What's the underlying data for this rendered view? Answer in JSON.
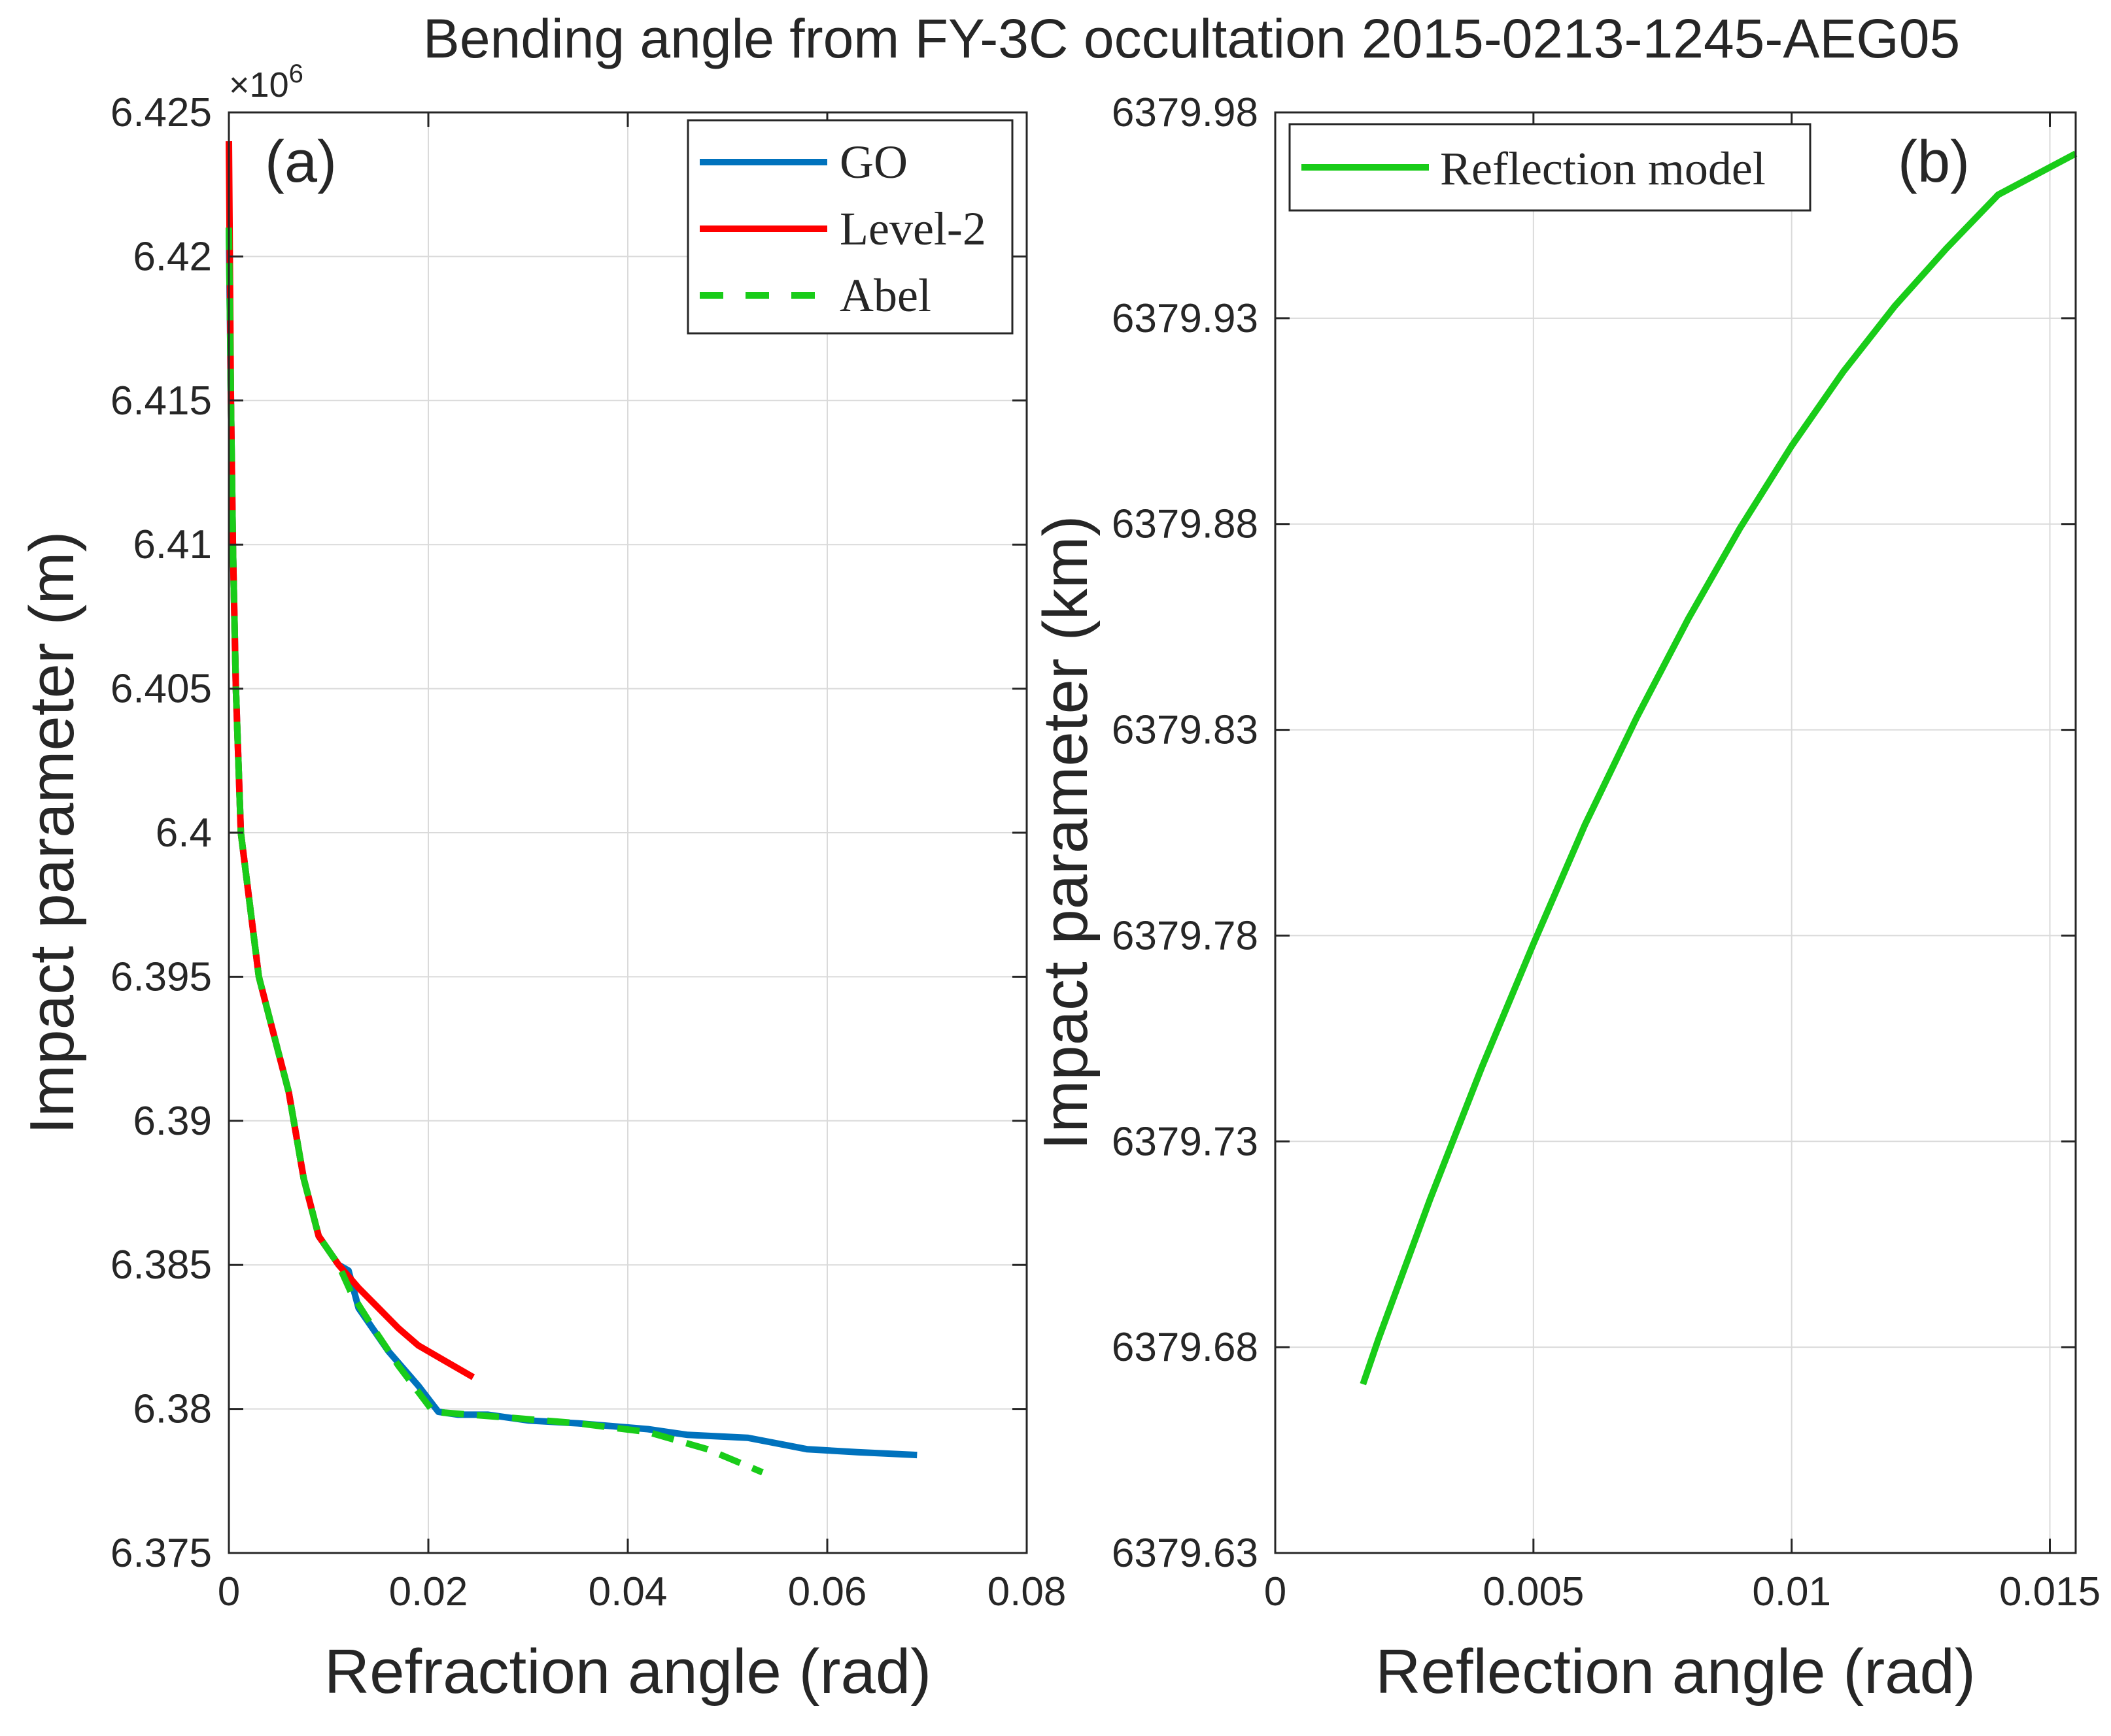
{
  "figure_title": "Bending angle from FY-3C occultation 2015-0213-1245-AEG05",
  "colors": {
    "go": "#0072BD",
    "level2": "#FF0000",
    "abel": "#19CC19",
    "reflection": "#19CC19",
    "axis": "#262626",
    "grid": "#DADADA"
  },
  "chart_data": [
    {
      "panel_label": "(a)",
      "type": "line",
      "xlabel": "Refraction angle (rad)",
      "ylabel": "Impact parameter (m)",
      "y_exponent": "×10",
      "y_exponent_power": "6",
      "xlim": [
        0,
        0.08
      ],
      "ylim": [
        6.375,
        6.425
      ],
      "xticks": [
        0,
        0.02,
        0.04,
        0.06,
        0.08
      ],
      "xtick_labels": [
        "0",
        "0.02",
        "0.04",
        "0.06",
        "0.08"
      ],
      "yticks": [
        6.375,
        6.38,
        6.385,
        6.39,
        6.395,
        6.4,
        6.405,
        6.41,
        6.415,
        6.42,
        6.425
      ],
      "ytick_labels": [
        "6.375",
        "6.38",
        "6.385",
        "6.39",
        "6.395",
        "6.4",
        "6.405",
        "6.41",
        "6.415",
        "6.42",
        "6.425"
      ],
      "grid": true,
      "legend_location": "top-right",
      "series": [
        {
          "name": "GO",
          "style": "solid",
          "color_key": "go",
          "points": [
            [
              0.0,
              6.421
            ],
            [
              0.0002,
              6.415
            ],
            [
              0.0004,
              6.41
            ],
            [
              0.0007,
              6.405
            ],
            [
              0.0012,
              6.4
            ],
            [
              0.003,
              6.395
            ],
            [
              0.0045,
              6.393
            ],
            [
              0.006,
              6.391
            ],
            [
              0.0075,
              6.388
            ],
            [
              0.009,
              6.386
            ],
            [
              0.011,
              6.385
            ],
            [
              0.012,
              6.3848
            ],
            [
              0.013,
              6.3835
            ],
            [
              0.016,
              6.382
            ],
            [
              0.019,
              6.3808
            ],
            [
              0.021,
              6.3799
            ],
            [
              0.023,
              6.3798
            ],
            [
              0.026,
              6.3798
            ],
            [
              0.03,
              6.3796
            ],
            [
              0.035,
              6.3795
            ],
            [
              0.042,
              6.3793
            ],
            [
              0.046,
              6.3791
            ],
            [
              0.052,
              6.379
            ],
            [
              0.058,
              6.3786
            ],
            [
              0.063,
              6.3785
            ],
            [
              0.069,
              6.3784
            ]
          ]
        },
        {
          "name": "Level-2",
          "style": "solid",
          "color_key": "level2",
          "points": [
            [
              0.0,
              6.424
            ],
            [
              0.0002,
              6.415
            ],
            [
              0.0004,
              6.41
            ],
            [
              0.0007,
              6.405
            ],
            [
              0.0012,
              6.4
            ],
            [
              0.003,
              6.395
            ],
            [
              0.0045,
              6.393
            ],
            [
              0.006,
              6.391
            ],
            [
              0.0075,
              6.388
            ],
            [
              0.009,
              6.386
            ],
            [
              0.011,
              6.385
            ],
            [
              0.013,
              6.3842
            ],
            [
              0.015,
              6.3835
            ],
            [
              0.017,
              6.3828
            ],
            [
              0.019,
              6.3822
            ],
            [
              0.0215,
              6.3817
            ],
            [
              0.0245,
              6.3811
            ]
          ]
        },
        {
          "name": "Abel",
          "style": "dashed",
          "color_key": "abel",
          "points": [
            [
              0.0,
              6.421
            ],
            [
              0.0002,
              6.415
            ],
            [
              0.0004,
              6.41
            ],
            [
              0.0007,
              6.405
            ],
            [
              0.0012,
              6.4
            ],
            [
              0.003,
              6.395
            ],
            [
              0.0045,
              6.393
            ],
            [
              0.006,
              6.391
            ],
            [
              0.0075,
              6.388
            ],
            [
              0.009,
              6.386
            ],
            [
              0.011,
              6.385
            ],
            [
              0.0123,
              6.384
            ],
            [
              0.0145,
              6.3828
            ],
            [
              0.017,
              6.3815
            ],
            [
              0.0205,
              6.3799
            ],
            [
              0.028,
              6.3797
            ],
            [
              0.035,
              6.3795
            ],
            [
              0.042,
              6.3792
            ],
            [
              0.048,
              6.3786
            ],
            [
              0.0535,
              6.3778
            ]
          ]
        }
      ]
    },
    {
      "panel_label": "(b)",
      "type": "line",
      "xlabel": "Reflection angle (rad)",
      "ylabel": "Impact parameter (km)",
      "xlim": [
        0,
        0.0155
      ],
      "ylim": [
        6379.63,
        6379.98
      ],
      "xticks": [
        0,
        0.005,
        0.01,
        0.015
      ],
      "xtick_labels": [
        "0",
        "0.005",
        "0.01",
        "0.015"
      ],
      "yticks": [
        6379.63,
        6379.68,
        6379.73,
        6379.78,
        6379.83,
        6379.88,
        6379.93,
        6379.98
      ],
      "ytick_labels": [
        "6379.63",
        "6379.68",
        "6379.73",
        "6379.78",
        "6379.83",
        "6379.88",
        "6379.93",
        "6379.98"
      ],
      "grid": true,
      "legend_location": "top-left",
      "series": [
        {
          "name": "Reflection model",
          "style": "solid",
          "color_key": "reflection",
          "points": [
            [
              0.0017,
              6379.671
            ],
            [
              0.002,
              6379.682
            ],
            [
              0.003,
              6379.716
            ],
            [
              0.004,
              6379.748
            ],
            [
              0.005,
              6379.778
            ],
            [
              0.006,
              6379.807
            ],
            [
              0.007,
              6379.833
            ],
            [
              0.008,
              6379.857
            ],
            [
              0.009,
              6379.879
            ],
            [
              0.01,
              6379.899
            ],
            [
              0.011,
              6379.917
            ],
            [
              0.012,
              6379.933
            ],
            [
              0.013,
              6379.947
            ],
            [
              0.014,
              6379.96
            ],
            [
              0.0155,
              6379.97
            ]
          ]
        }
      ]
    }
  ]
}
